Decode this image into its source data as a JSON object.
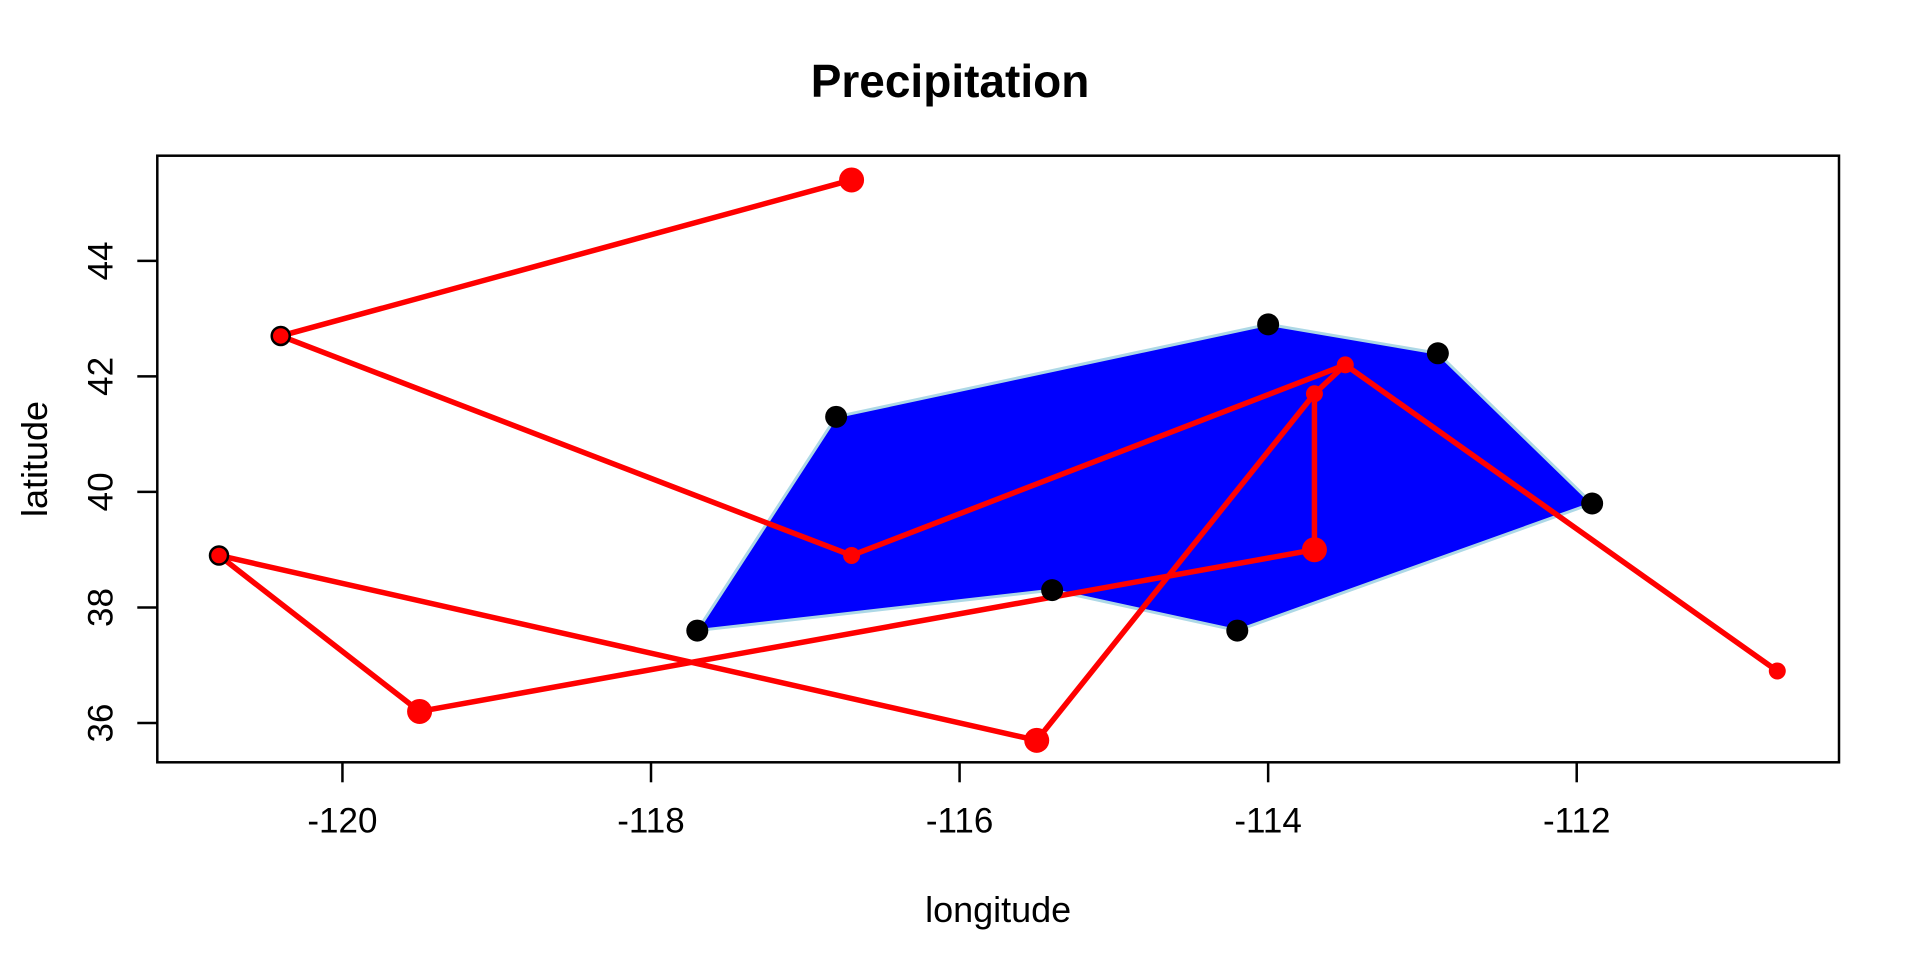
{
  "chart_data": {
    "type": "scatter",
    "title": "Precipitation",
    "xlabel": "longitude",
    "ylabel": "latitude",
    "xlim": [
      -121.2,
      -110.3
    ],
    "ylim": [
      35.32,
      45.82
    ],
    "x_ticks": [
      -120,
      -118,
      -116,
      -114,
      -112
    ],
    "y_ticks": [
      36,
      38,
      40,
      42,
      44
    ],
    "grid": false,
    "legend": "none",
    "colors": {
      "background": "#ffffff",
      "axis": "#000000",
      "polygon_fill": "#0000ff",
      "polygon_border": "#add8e6",
      "black_points": "#000000",
      "red_path": "#ff0000"
    },
    "blue_polygon": {
      "comment_visible_content_only": "filled blue region whose vertices are the black station points",
      "vertices": [
        [
          -116.8,
          41.3
        ],
        [
          -114.0,
          42.9
        ],
        [
          -112.9,
          42.4
        ],
        [
          -111.9,
          39.8
        ],
        [
          -114.2,
          37.6
        ],
        [
          -115.4,
          38.3
        ],
        [
          -117.7,
          37.6
        ]
      ]
    },
    "black_points": [
      {
        "lon": -116.8,
        "lat": 41.3
      },
      {
        "lon": -114.0,
        "lat": 42.9
      },
      {
        "lon": -112.9,
        "lat": 42.4
      },
      {
        "lon": -111.9,
        "lat": 39.8
      },
      {
        "lon": -114.2,
        "lat": 37.6
      },
      {
        "lon": -115.4,
        "lat": 38.3
      },
      {
        "lon": -117.7,
        "lat": 37.6
      }
    ],
    "red_points": [
      {
        "id": "A",
        "lon": -116.7,
        "lat": 45.4,
        "size": "large",
        "outlined": false
      },
      {
        "id": "B",
        "lon": -120.4,
        "lat": 42.7,
        "size": "small",
        "outlined": true
      },
      {
        "id": "C",
        "lon": -120.8,
        "lat": 38.9,
        "size": "small",
        "outlined": true
      },
      {
        "id": "D",
        "lon": -119.5,
        "lat": 36.2,
        "size": "large",
        "outlined": false
      },
      {
        "id": "E",
        "lon": -116.7,
        "lat": 38.9,
        "size": "small",
        "outlined": false
      },
      {
        "id": "F",
        "lon": -115.5,
        "lat": 35.7,
        "size": "large",
        "outlined": false
      },
      {
        "id": "G",
        "lon": -113.5,
        "lat": 42.2,
        "size": "small",
        "outlined": false
      },
      {
        "id": "H",
        "lon": -113.7,
        "lat": 41.7,
        "size": "small",
        "outlined": false
      },
      {
        "id": "I",
        "lon": -113.7,
        "lat": 39.0,
        "size": "large",
        "outlined": false
      },
      {
        "id": "J",
        "lon": -110.7,
        "lat": 36.9,
        "size": "small",
        "outlined": false
      }
    ],
    "red_segments": [
      [
        "A",
        "B"
      ],
      [
        "B",
        "E"
      ],
      [
        "E",
        "G"
      ],
      [
        "G",
        "H"
      ],
      [
        "G",
        "J"
      ],
      [
        "H",
        "F"
      ],
      [
        "H",
        "I"
      ],
      [
        "I",
        "D"
      ],
      [
        "D",
        "C"
      ],
      [
        "C",
        "F"
      ]
    ]
  }
}
